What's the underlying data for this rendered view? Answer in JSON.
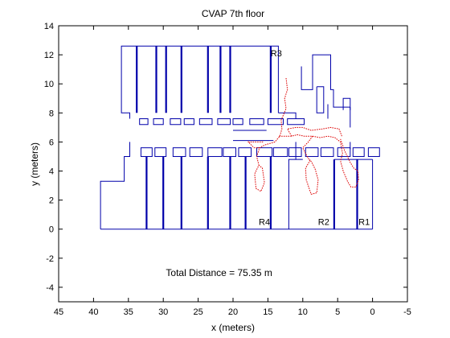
{
  "chart_data": {
    "type": "line",
    "title": "CVAP 7th floor",
    "xlabel": "x (meters)",
    "ylabel": "y (meters)",
    "xlim": [
      45,
      -5
    ],
    "ylim": [
      -5,
      14
    ],
    "x_reversed": true,
    "xticks": [
      45,
      40,
      35,
      30,
      25,
      20,
      15,
      10,
      5,
      0,
      -5
    ],
    "yticks": [
      -4,
      -2,
      0,
      2,
      4,
      6,
      8,
      10,
      12,
      14
    ],
    "grid": false,
    "colors": {
      "walls": "#0000aa",
      "trajectory": "#dd0000"
    },
    "annotations": [
      {
        "text": "Total Distance = 75.35 m",
        "x": 22,
        "y": -3
      }
    ],
    "room_labels": [
      {
        "text": "R3",
        "x": 13.8,
        "y": 11.9
      },
      {
        "text": "R4",
        "x": 15.5,
        "y": 0.3
      },
      {
        "text": "R2",
        "x": 7.0,
        "y": 0.3
      },
      {
        "text": "R1",
        "x": 1.2,
        "y": 0.3
      }
    ],
    "series": [
      {
        "style": "walls",
        "segments": [
          [
            [
              39,
              0
            ],
            [
              39,
              3.3
            ],
            [
              35.6,
              3.3
            ],
            [
              35.6,
              5
            ],
            [
              34.8,
              5
            ],
            [
              34.8,
              6
            ]
          ],
          [
            [
              39,
              0
            ],
            [
              12,
              0
            ]
          ],
          [
            [
              12,
              0
            ],
            [
              12,
              4.8
            ],
            [
              11,
              4.8
            ],
            [
              11,
              6
            ]
          ],
          [
            [
              34.8,
              7.6
            ],
            [
              34.8,
              8
            ],
            [
              36,
              8
            ],
            [
              36,
              12.6
            ],
            [
              13.5,
              12.6
            ],
            [
              13.5,
              8
            ]
          ],
          [
            [
              11,
              7.6
            ],
            [
              11,
              8
            ],
            [
              13.5,
              8
            ]
          ],
          [
            [
              10.2,
              11.2
            ],
            [
              10.2,
              9.6
            ],
            [
              8.6,
              9.6
            ],
            [
              8.6,
              12
            ],
            [
              6,
              12
            ],
            [
              6,
              9.6
            ],
            [
              5.6,
              9.6
            ],
            [
              5.6,
              8.4
            ],
            [
              3.2,
              8.4
            ]
          ],
          [
            [
              8,
              9.8
            ],
            [
              8,
              8
            ],
            [
              7,
              8
            ],
            [
              7,
              9.8
            ],
            [
              8,
              9.8
            ]
          ],
          [
            [
              6.4,
              8.6
            ],
            [
              6.4,
              7.6
            ]
          ],
          [
            [
              3.2,
              8.4
            ],
            [
              3.2,
              8.2
            ],
            [
              3.2,
              7.0
            ]
          ],
          [
            [
              4.2,
              8.2
            ],
            [
              4.2,
              9.0
            ],
            [
              3.2,
              9.0
            ],
            [
              3.2,
              8.2
            ]
          ],
          [
            [
              3.2,
              6
            ],
            [
              3.2,
              5.5
            ]
          ],
          [
            [
              0,
              4.8
            ],
            [
              5.5,
              4.8
            ]
          ],
          [
            [
              0,
              4.8
            ],
            [
              0,
              0
            ]
          ],
          [
            [
              12,
              0
            ],
            [
              0,
              0
            ]
          ],
          [
            [
              10,
              4.8
            ],
            [
              11,
              4.8
            ]
          ],
          [
            [
              20,
              6.8
            ],
            [
              15.2,
              6.8
            ]
          ],
          [
            [
              20,
              6.1
            ],
            [
              14.2,
              6.1
            ]
          ]
        ],
        "thick_segments": [
          [
            [
              33.8,
              12.6
            ],
            [
              33.8,
              8
            ]
          ],
          [
            [
              31,
              12.6
            ],
            [
              31,
              8
            ]
          ],
          [
            [
              29.6,
              12.6
            ],
            [
              29.6,
              8
            ]
          ],
          [
            [
              27.4,
              12.6
            ],
            [
              27.4,
              8
            ]
          ],
          [
            [
              23.6,
              12.6
            ],
            [
              23.6,
              8
            ]
          ],
          [
            [
              21.8,
              12.6
            ],
            [
              21.8,
              8
            ]
          ],
          [
            [
              20.4,
              12.6
            ],
            [
              20.4,
              8
            ]
          ],
          [
            [
              14.6,
              12.6
            ],
            [
              14.6,
              8
            ]
          ],
          [
            [
              32.4,
              5
            ],
            [
              32.4,
              0
            ]
          ],
          [
            [
              30,
              5
            ],
            [
              30,
              0
            ]
          ],
          [
            [
              27.4,
              5
            ],
            [
              27.4,
              0
            ]
          ],
          [
            [
              23.6,
              5
            ],
            [
              23.6,
              0
            ]
          ],
          [
            [
              20.4,
              5
            ],
            [
              20.4,
              0
            ]
          ],
          [
            [
              18.2,
              5
            ],
            [
              18.2,
              0
            ]
          ],
          [
            [
              14.6,
              5
            ],
            [
              14.6,
              0
            ]
          ],
          [
            [
              5.5,
              4.8
            ],
            [
              5.5,
              0
            ]
          ],
          [
            [
              2.2,
              4.8
            ],
            [
              2.2,
              0
            ]
          ]
        ],
        "boxes": [
          [
            33.4,
            7.2,
            1.2,
            0.4
          ],
          [
            31.4,
            7.2,
            1.4,
            0.4
          ],
          [
            29.0,
            7.2,
            1.5,
            0.4
          ],
          [
            27.0,
            7.2,
            1.4,
            0.4
          ],
          [
            24.8,
            7.2,
            1.8,
            0.4
          ],
          [
            22.2,
            7.2,
            1.8,
            0.4
          ],
          [
            20.0,
            7.2,
            1.4,
            0.4
          ],
          [
            17.6,
            7.2,
            2.0,
            0.4
          ],
          [
            15.0,
            7.2,
            2.2,
            0.4
          ],
          [
            12.2,
            7.2,
            2.4,
            0.4
          ],
          [
            33.2,
            5.0,
            1.6,
            0.6
          ],
          [
            31.2,
            5.0,
            1.6,
            0.6
          ],
          [
            28.6,
            5.0,
            1.8,
            0.6
          ],
          [
            26.2,
            5.0,
            1.8,
            0.6
          ],
          [
            23.6,
            5.0,
            2.0,
            0.6
          ],
          [
            21.4,
            5.0,
            1.8,
            0.6
          ],
          [
            19.2,
            5.0,
            1.8,
            0.6
          ],
          [
            16.6,
            5.0,
            2.2,
            0.6
          ],
          [
            14.2,
            5.0,
            2.0,
            0.6
          ],
          [
            12.0,
            5.0,
            1.8,
            0.6
          ],
          [
            9.6,
            5.0,
            1.8,
            0.6
          ],
          [
            7.4,
            5.0,
            1.8,
            0.6
          ],
          [
            5.0,
            5.0,
            1.8,
            0.6
          ],
          [
            2.8,
            5.0,
            1.6,
            0.6
          ],
          [
            0.6,
            5.0,
            1.6,
            0.6
          ]
        ]
      },
      {
        "style": "trajectory",
        "points": [
          [
            12.4,
            10.4
          ],
          [
            12.2,
            9.6
          ],
          [
            12.6,
            9.0
          ],
          [
            12.4,
            8.3
          ],
          [
            13.1,
            7.5
          ],
          [
            13.0,
            6.9
          ],
          [
            13.3,
            6.4
          ],
          [
            14.0,
            6.0
          ],
          [
            15.4,
            5.8
          ],
          [
            16.2,
            5.6
          ],
          [
            16.6,
            5.0
          ],
          [
            16.3,
            4.4
          ],
          [
            16.9,
            3.8
          ],
          [
            16.7,
            2.8
          ],
          [
            16.0,
            2.6
          ],
          [
            15.5,
            3.2
          ],
          [
            15.8,
            4.2
          ],
          [
            16.3,
            4.4
          ]
        ],
        "extra_paths": [
          [
            [
              13.4,
              6.4
            ],
            [
              11.6,
              6.4
            ],
            [
              10.8,
              6.5
            ],
            [
              9.8,
              6.4
            ],
            [
              8.6,
              6.4
            ],
            [
              7.5,
              6.3
            ],
            [
              6.4,
              6.4
            ],
            [
              5.4,
              6.3
            ],
            [
              4.6,
              6.0
            ],
            [
              4.3,
              5.2
            ],
            [
              4.6,
              4.7
            ],
            [
              4.2,
              4.0
            ],
            [
              3.6,
              3.3
            ],
            [
              3.1,
              2.9
            ],
            [
              2.4,
              2.9
            ],
            [
              2.0,
              3.4
            ],
            [
              2.1,
              4.0
            ],
            [
              2.7,
              4.2
            ],
            [
              3.2,
              4.6
            ],
            [
              4.0,
              5.4
            ],
            [
              4.6,
              6.2
            ]
          ],
          [
            [
              8.6,
              6.4
            ],
            [
              9.2,
              6.0
            ],
            [
              10.0,
              5.6
            ],
            [
              9.6,
              5.2
            ],
            [
              9.0,
              4.7
            ],
            [
              9.6,
              4.2
            ],
            [
              9.5,
              3.4
            ],
            [
              8.8,
              2.4
            ],
            [
              8.0,
              2.5
            ],
            [
              7.8,
              3.4
            ],
            [
              8.2,
              4.1
            ],
            [
              8.6,
              4.5
            ],
            [
              9.0,
              4.8
            ]
          ],
          [
            [
              11.6,
              6.4
            ],
            [
              12.2,
              6.9
            ],
            [
              11.0,
              7.0
            ],
            [
              10.0,
              7.0
            ],
            [
              8.8,
              6.8
            ],
            [
              7.2,
              6.9
            ],
            [
              6.0,
              7.0
            ],
            [
              4.8,
              6.9
            ],
            [
              4.4,
              6.4
            ]
          ],
          [
            [
              16.2,
              5.6
            ],
            [
              17.0,
              5.6
            ],
            [
              17.8,
              6.0
            ],
            [
              16.8,
              6.0
            ],
            [
              15.6,
              6.0
            ]
          ]
        ]
      }
    ]
  }
}
